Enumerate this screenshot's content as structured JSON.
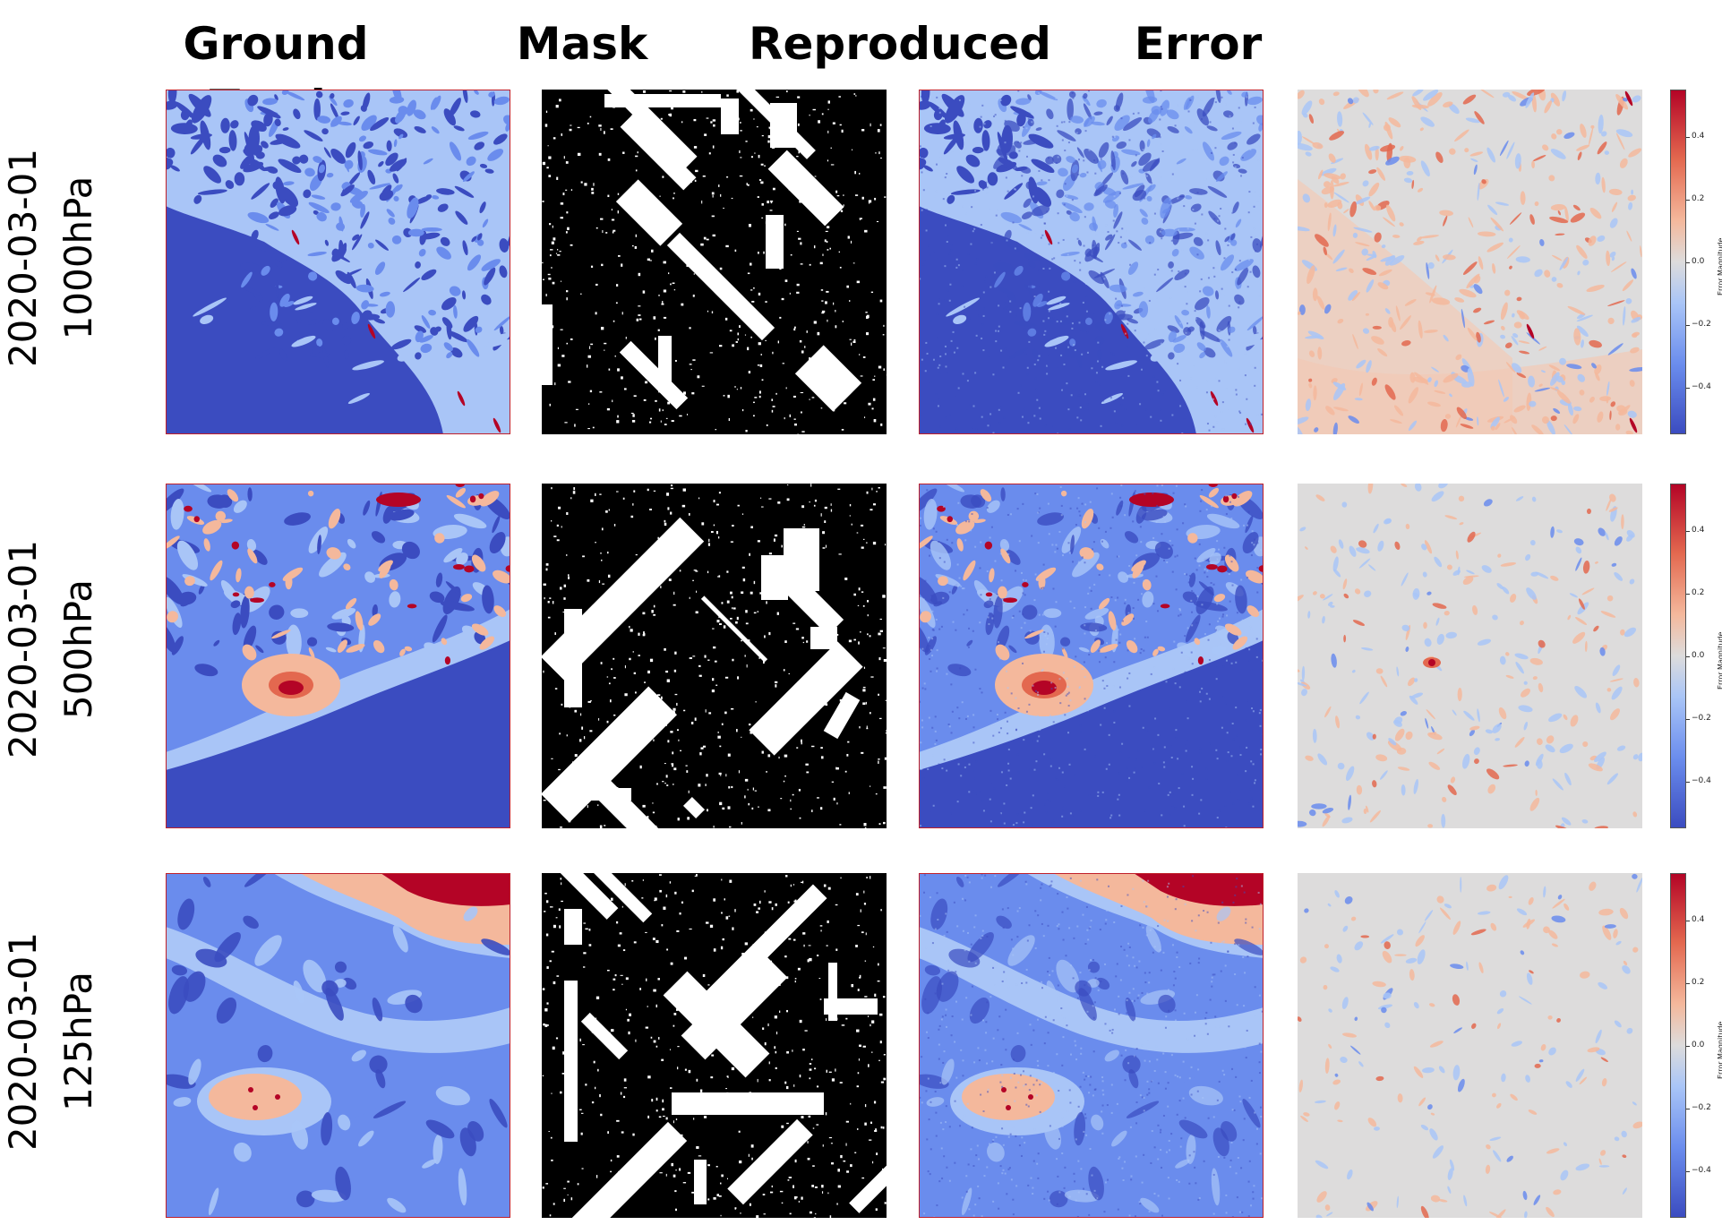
{
  "columns": [
    "Ground Truth",
    "Mask",
    "Reproduced",
    "Error"
  ],
  "rows": [
    {
      "date": "2020-03-01",
      "level": "1000hPa"
    },
    {
      "date": "2020-03-01",
      "level": "500hPa"
    },
    {
      "date": "2020-03-01",
      "level": "125hPa"
    }
  ],
  "colorbar": {
    "label": "Error Magnitude",
    "ticks": [
      "0.4",
      "0.2",
      "0.0",
      "−0.2",
      "−0.4"
    ],
    "tick_values": [
      0.4,
      0.2,
      0.0,
      -0.2,
      -0.4
    ],
    "range": [
      -0.55,
      0.55
    ],
    "colormap": "coolwarm"
  },
  "colors": {
    "cool_dark": "#3b4cc0",
    "cool_mid": "#6a8ced",
    "cool_light": "#a9c5f7",
    "neutral": "#dddcdc",
    "warm_light": "#f4b89c",
    "warm_mid": "#e3684f",
    "warm_dark": "#b40426",
    "mask_black": "#000000",
    "mask_white": "#ffffff"
  },
  "chart_data": {
    "type": "heatmap",
    "grid": "3 rows × 4 columns",
    "row_labels": [
      "2020-03-01 1000hPa",
      "2020-03-01 500hPa",
      "2020-03-01 125hPa"
    ],
    "column_labels": [
      "Ground Truth",
      "Mask",
      "Reproduced",
      "Error"
    ],
    "error_colorbar_range": [
      -0.55,
      0.55
    ],
    "error_colorbar_ticks": [
      -0.4,
      -0.2,
      0.0,
      0.2,
      0.4
    ]
  }
}
